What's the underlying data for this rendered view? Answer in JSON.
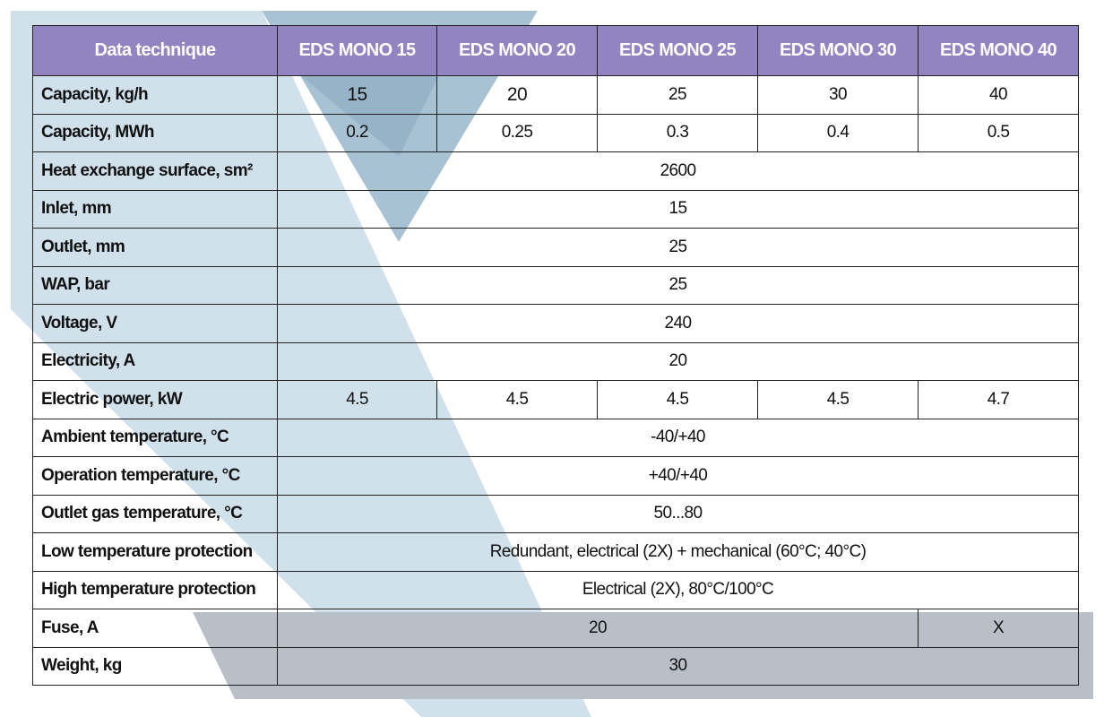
{
  "table": {
    "header": {
      "label": "Data technique",
      "models": [
        "EDS MONO 15",
        "EDS MONO 20",
        "EDS MONO 25",
        "EDS MONO 30",
        "EDS MONO 40"
      ]
    },
    "rows": [
      {
        "label": "Capacity, kg/h",
        "cells": [
          "15",
          "20",
          "25",
          "30",
          "40"
        ]
      },
      {
        "label": "Capacity, MWh",
        "cells": [
          "0.2",
          "0.25",
          "0.3",
          "0.4",
          "0.5"
        ]
      },
      {
        "label": "Heat exchange surface, sm²",
        "value": "2600"
      },
      {
        "label": "Inlet, mm",
        "value": "15"
      },
      {
        "label": "Outlet, mm",
        "value": "25"
      },
      {
        "label": "WAP, bar",
        "value": "25"
      },
      {
        "label": "Voltage, V",
        "value": "240"
      },
      {
        "label": "Electricity, A",
        "value": "20"
      },
      {
        "label": "Electric power, kW",
        "cells": [
          "4.5",
          "4.5",
          "4.5",
          "4.5",
          "4.7"
        ]
      },
      {
        "label": "Ambient temperature, °C",
        "value": "-40/+40"
      },
      {
        "label": "Operation temperature, °C",
        "value": "+40/+40"
      },
      {
        "label": "Outlet gas temperature, °C",
        "value": "50...80"
      },
      {
        "label": "Low temperature protection",
        "value": "Redundant, electrical (2X) + mechanical (60°C; 40°C)"
      },
      {
        "label": "High temperature protection",
        "value": "Electrical (2X), 80°C/100°C"
      },
      {
        "label": "Fuse, A",
        "value": "20",
        "last": "X"
      },
      {
        "label": "Weight, kg",
        "value": "30"
      }
    ]
  },
  "colors": {
    "header_bg": "#9283c1",
    "header_text": "#ffffff",
    "light_blue_band": "#cfe0eb",
    "mid_blue_band": "#a9c3d5",
    "gray_band": "#b7bec6"
  }
}
